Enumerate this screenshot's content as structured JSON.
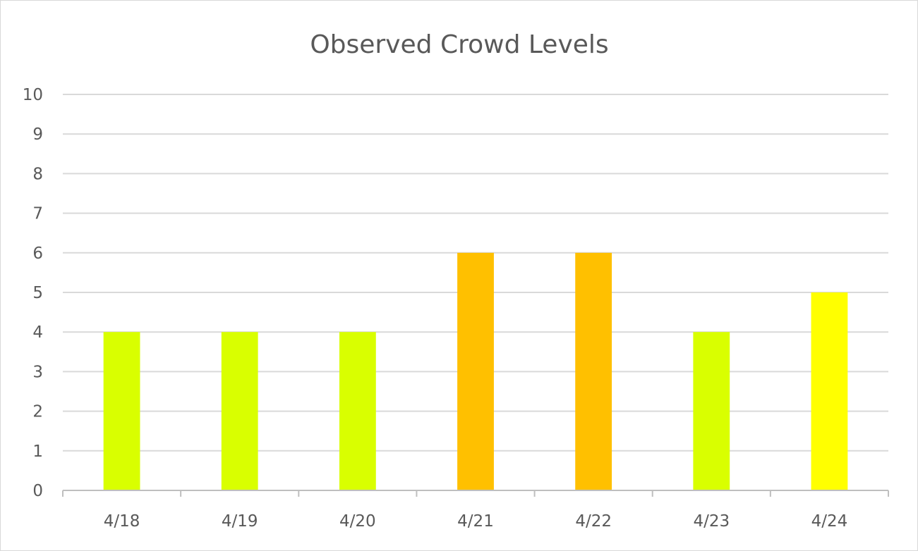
{
  "chart_data": {
    "type": "bar",
    "title": "Observed Crowd Levels",
    "xlabel": "",
    "ylabel": "",
    "categories": [
      "4/18",
      "4/19",
      "4/20",
      "4/21",
      "4/22",
      "4/23",
      "4/24"
    ],
    "values": [
      4,
      4,
      4,
      6,
      6,
      4,
      5
    ],
    "bar_colors": [
      "#d9ff00",
      "#d9ff00",
      "#d9ff00",
      "#ffc000",
      "#ffc000",
      "#d9ff00",
      "#ffff00"
    ],
    "ylim": [
      0,
      10
    ],
    "yticks": [
      "0",
      "1",
      "2",
      "3",
      "4",
      "5",
      "6",
      "7",
      "8",
      "9",
      "10"
    ],
    "grid": true,
    "legend": "none"
  }
}
